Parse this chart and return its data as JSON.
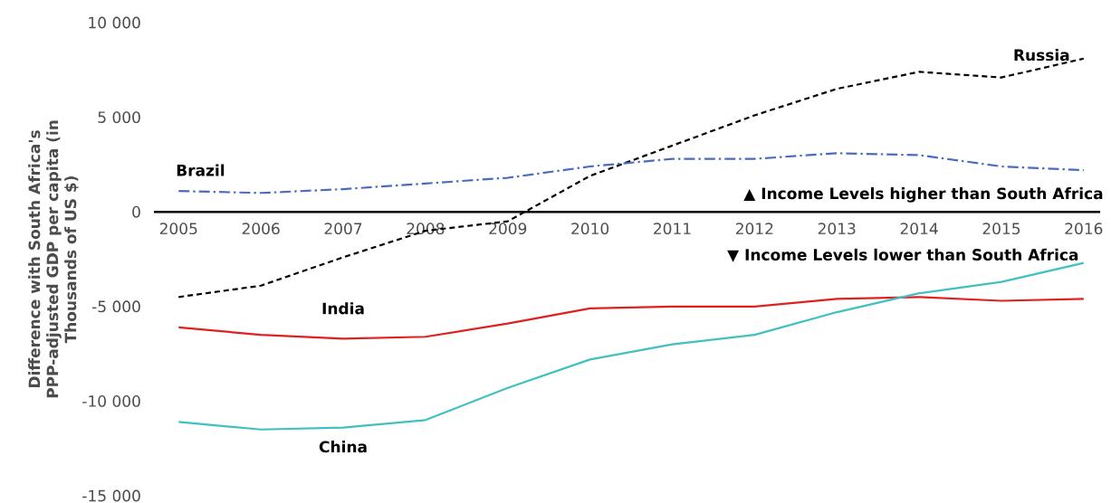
{
  "chart_data": {
    "type": "line",
    "ylabel": "Difference with South Africa's PPP-adjusted GDP per capita (in Thousands of US $)",
    "categories": [
      "2005",
      "2006",
      "2007",
      "2008",
      "2009",
      "2010",
      "2011",
      "2012",
      "2013",
      "2014",
      "2015",
      "2016"
    ],
    "series": [
      {
        "name": "Russia",
        "color": "#000000",
        "line_style": "dashed",
        "values": [
          -4500,
          -3900,
          -2400,
          -1000,
          -500,
          1900,
          3500,
          5100,
          6500,
          7400,
          7100,
          8100
        ]
      },
      {
        "name": "Brazil",
        "color": "#4a6bbf",
        "line_style": "dashdot",
        "values": [
          1100,
          1000,
          1200,
          1500,
          1800,
          2400,
          2800,
          2800,
          3100,
          3000,
          2400,
          2200
        ]
      },
      {
        "name": "India",
        "color": "#e02020",
        "line_style": "solid",
        "values": [
          -6100,
          -6500,
          -6700,
          -6600,
          -5900,
          -5100,
          -5000,
          -5000,
          -4600,
          -4500,
          -4700,
          -4600
        ]
      },
      {
        "name": "China",
        "color": "#40c0c0",
        "line_style": "solid",
        "values": [
          -11100,
          -11500,
          -11400,
          -11000,
          -9300,
          -7800,
          -7000,
          -6500,
          -5300,
          -4300,
          -3700,
          -2700
        ]
      }
    ],
    "ylim": [
      -15000,
      10000
    ],
    "yticks": [
      {
        "value": -15000,
        "label": "-15 000"
      },
      {
        "value": -10000,
        "label": "-10 000"
      },
      {
        "value": -5000,
        "label": "-5 000"
      },
      0,
      {
        "value": 5000,
        "label": "5 000"
      },
      {
        "value": 10000,
        "label": "10 000"
      }
    ],
    "annotations": [
      "▲  Income Levels higher than South Africa",
      "▼  Income Levels lower than South Africa"
    ],
    "grid": false,
    "legend": false,
    "marker": "none"
  }
}
